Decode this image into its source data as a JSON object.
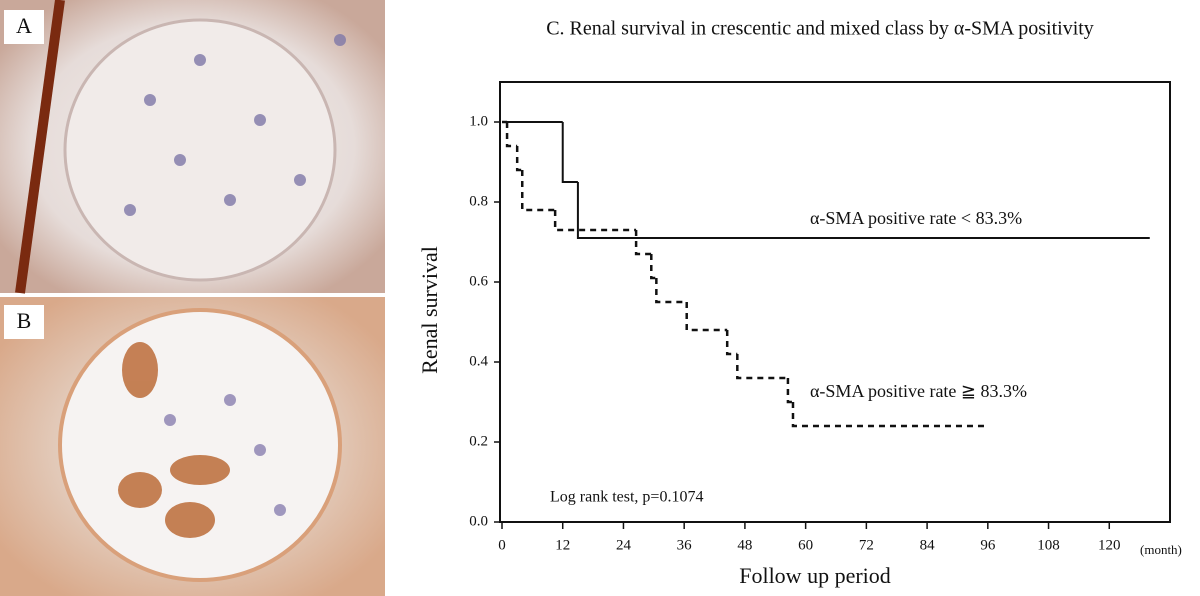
{
  "panels": [
    {
      "label": "A"
    },
    {
      "label": "B"
    }
  ],
  "chart_data": {
    "type": "step",
    "title": "C. Renal survival in crescentic and mixed class by α-SMA positivity",
    "ylabel": "Renal survival",
    "xlabel": "Follow up period",
    "xunit": "(month)",
    "annotation": "Log rank test, p=0.1074",
    "xlim": [
      0,
      132
    ],
    "ylim": [
      0,
      1.1
    ],
    "xticks": [
      0,
      12,
      24,
      36,
      48,
      60,
      72,
      84,
      96,
      108,
      120
    ],
    "yticks": [
      {
        "value": 0,
        "label": "0.0"
      },
      0.2,
      0.4,
      0.6,
      0.8,
      {
        "value": 1,
        "label": "1.0"
      }
    ],
    "series": [
      {
        "name": "α-SMA positive rate < 83.3%",
        "color": "#111111",
        "dash": false,
        "x": [
          0,
          12,
          15,
          128
        ],
        "values": [
          1.0,
          0.85,
          0.71,
          0.71
        ]
      },
      {
        "name": "α-SMA positive rate ≧ 83.3%",
        "color": "#111111",
        "dash": true,
        "x": [
          0,
          1,
          3,
          4,
          10.5,
          26.5,
          29.5,
          30.5,
          36.5,
          44.5,
          46.5,
          56.5,
          57.5,
          96
        ],
        "values": [
          1.0,
          0.94,
          0.88,
          0.78,
          0.73,
          0.67,
          0.61,
          0.55,
          0.48,
          0.42,
          0.36,
          0.3,
          0.24,
          0.24
        ]
      }
    ]
  }
}
